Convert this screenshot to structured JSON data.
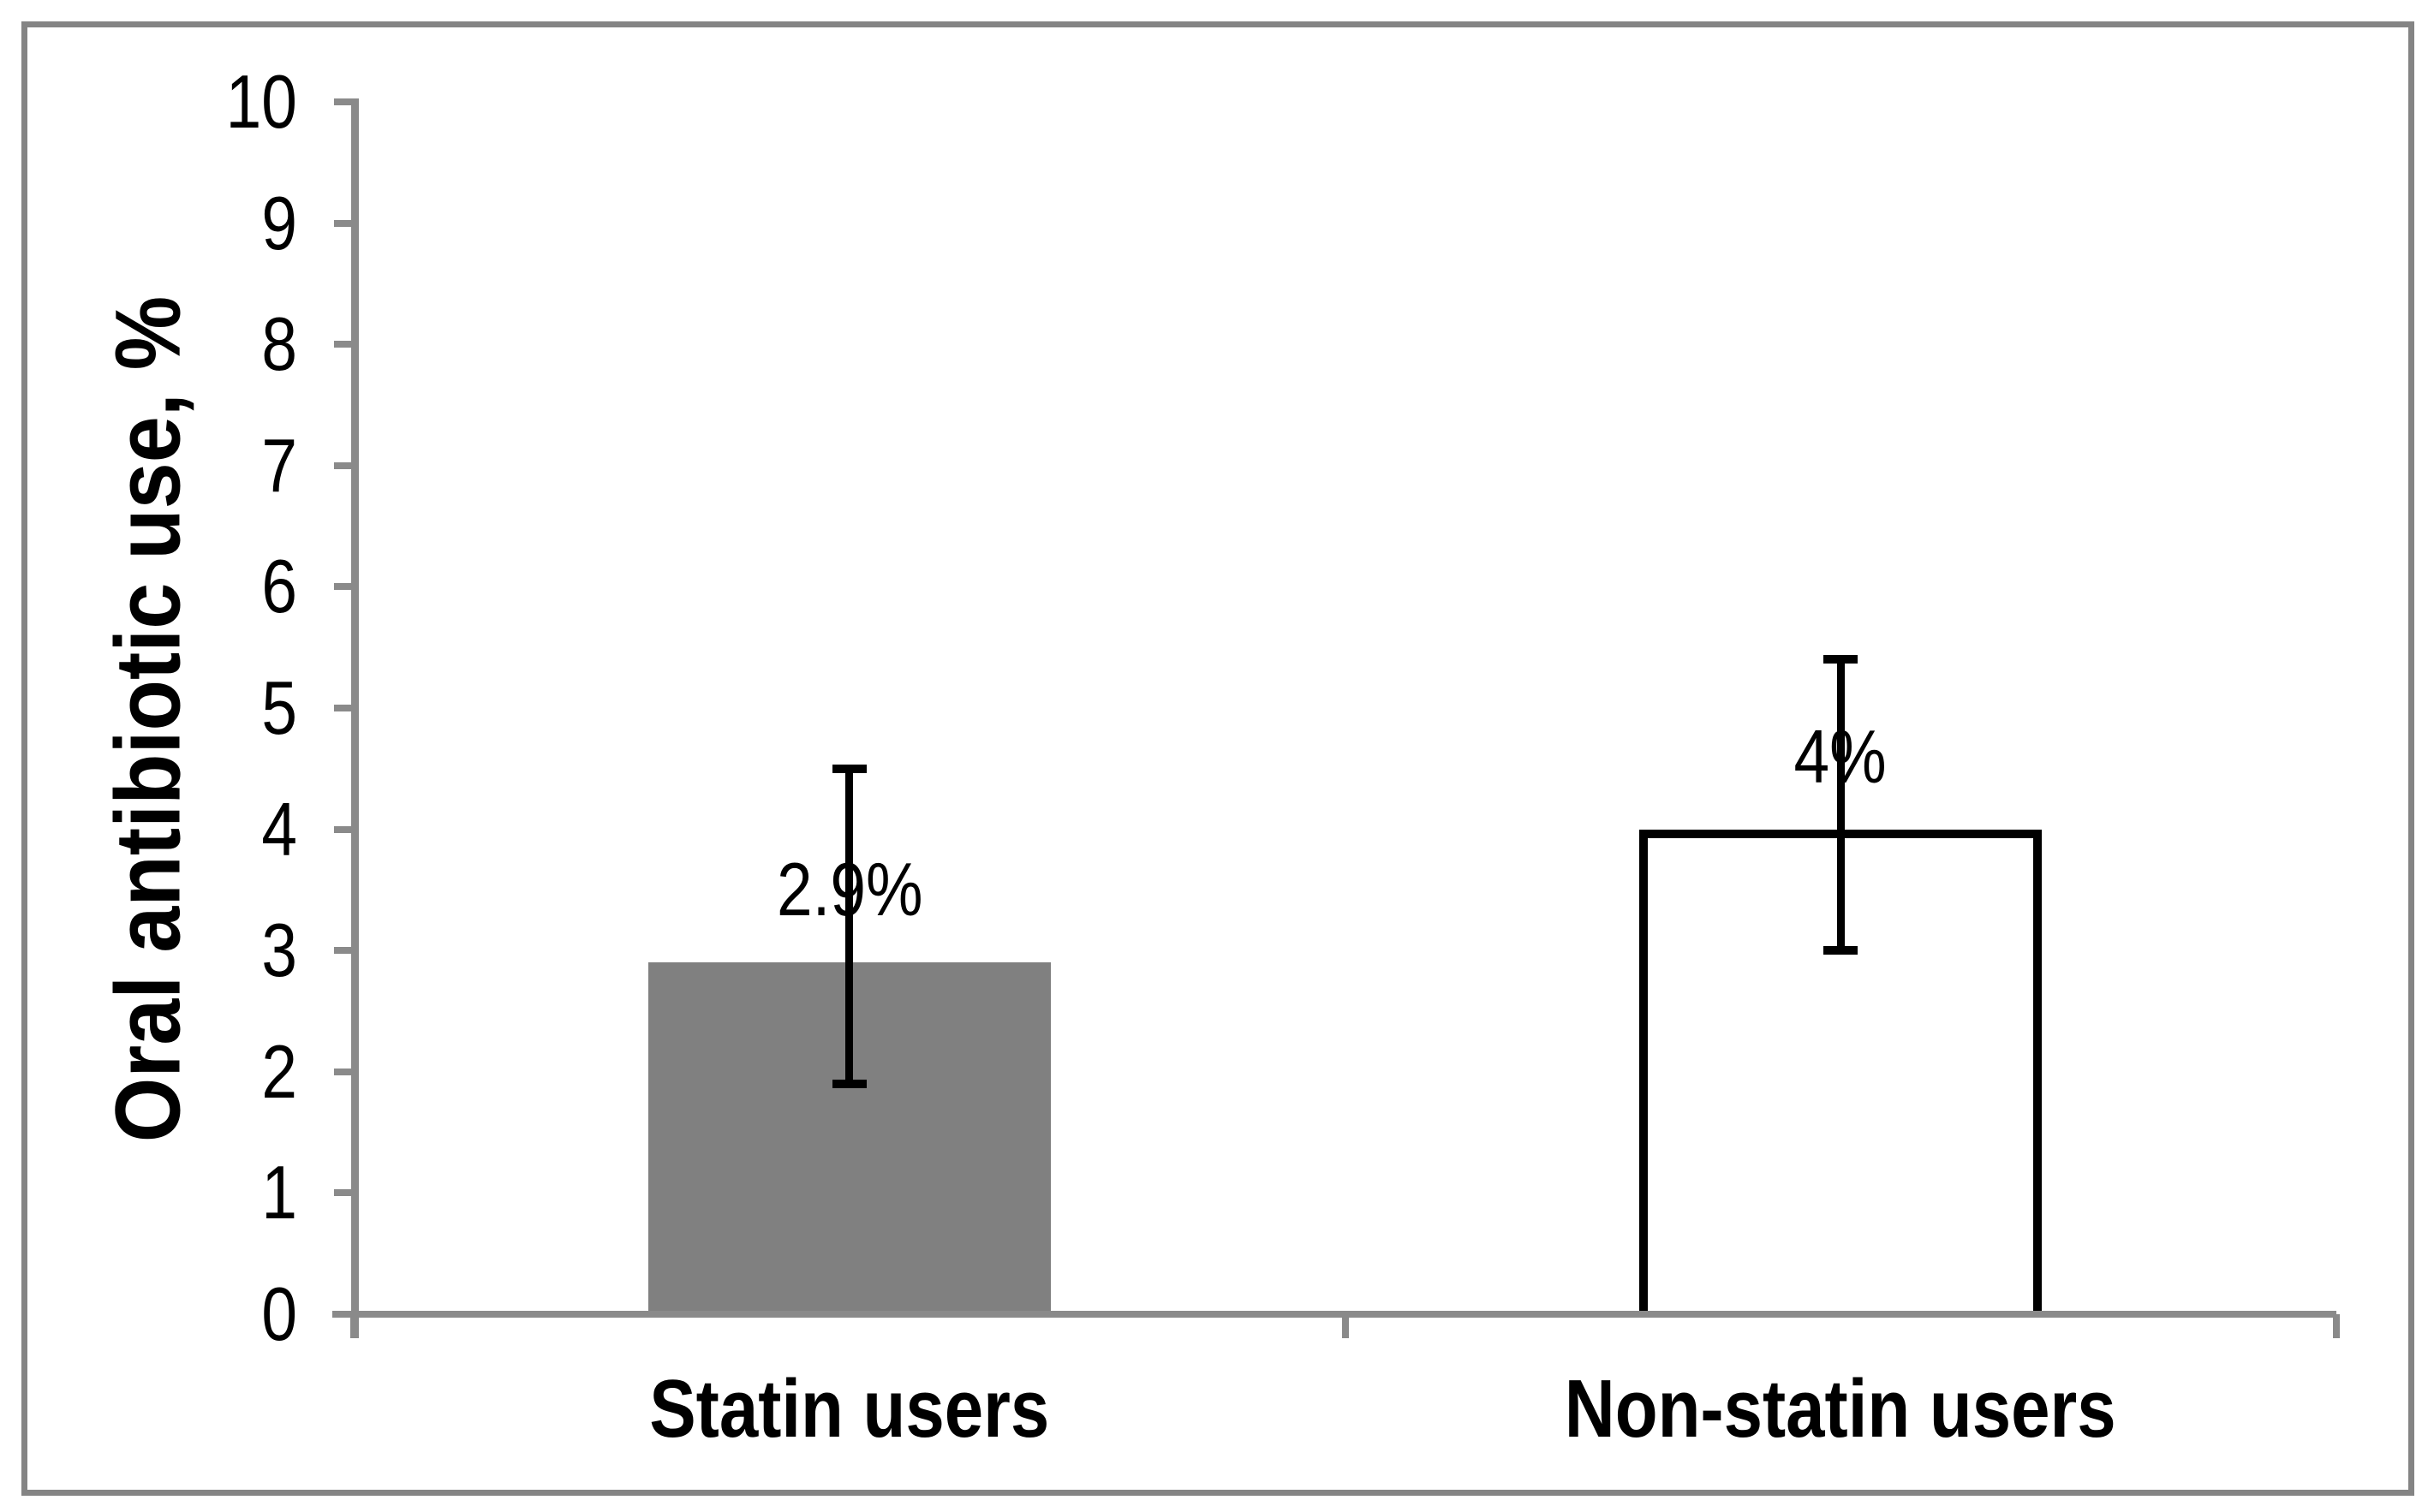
{
  "figure": {
    "background": "#ffffff",
    "frame_color": "#848484",
    "axis_color": "#8a8a8a",
    "text_color": "#000000"
  },
  "chart_data": {
    "type": "bar",
    "title": "",
    "xlabel": "",
    "ylabel": "Oral antibiotic use, %",
    "ylim": [
      0,
      10
    ],
    "ytick_interval": 1,
    "yticks": [
      0,
      1,
      2,
      3,
      4,
      5,
      6,
      7,
      8,
      9,
      10
    ],
    "grid": false,
    "legend": "none",
    "categories": [
      "Statin users",
      "Non-statin users"
    ],
    "series": [
      {
        "name": "Oral antibiotic use",
        "values": [
          2.9,
          4.0
        ],
        "value_labels": [
          "2.9%",
          "4%"
        ],
        "error_low": [
          1.9,
          3.0
        ],
        "error_high": [
          4.5,
          5.4
        ],
        "bar_fill": [
          "#808080",
          "#ffffff"
        ],
        "bar_border": [
          "none",
          "#000000"
        ]
      }
    ]
  }
}
